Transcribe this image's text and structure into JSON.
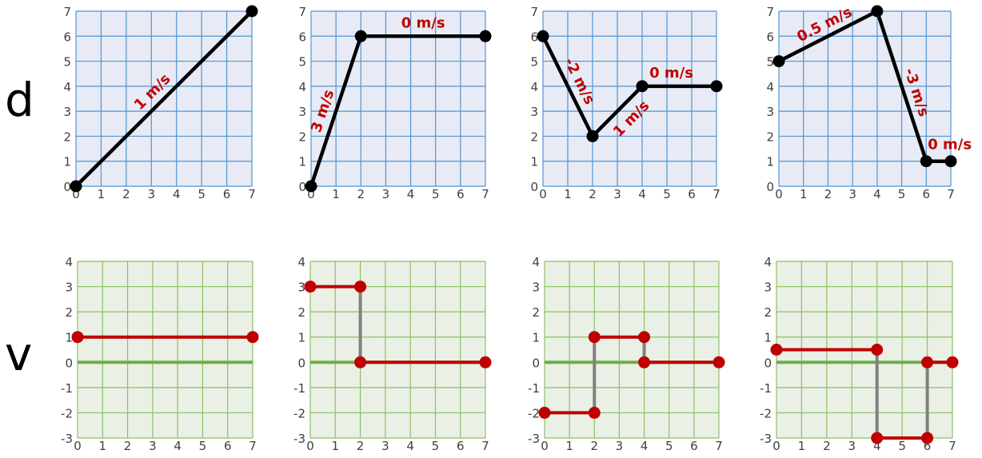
{
  "row_labels": {
    "top": "d",
    "bottom": "v"
  },
  "colors": {
    "d_plot_bg": "#e8ebf5",
    "d_grid": "#4f95d4",
    "v_plot_bg": "#eaf0e6",
    "v_grid": "#8cc063",
    "v_zero_line": "#70ad47",
    "d_line": "#000000",
    "v_line": "#c00000",
    "v_connector": "#808080",
    "speed_label": "#c00000",
    "tick_text": "#404040"
  },
  "chart_data": [
    {
      "type": "line",
      "kind": "distance",
      "xlim": [
        0,
        7
      ],
      "ylim": [
        0,
        7
      ],
      "xticks": [
        "0",
        "1",
        "2",
        "3",
        "4",
        "5",
        "6",
        "7"
      ],
      "yticks": [
        "0",
        "1",
        "2",
        "3",
        "4",
        "5",
        "6",
        "7"
      ],
      "points": [
        [
          0,
          0
        ],
        [
          7,
          7
        ]
      ],
      "segment_labels": [
        "1 m/s"
      ]
    },
    {
      "type": "line",
      "kind": "distance",
      "xlim": [
        0,
        7
      ],
      "ylim": [
        0,
        7
      ],
      "xticks": [
        "0",
        "1",
        "2",
        "3",
        "4",
        "5",
        "6",
        "7"
      ],
      "yticks": [
        "0",
        "1",
        "2",
        "3",
        "4",
        "5",
        "6",
        "7"
      ],
      "points": [
        [
          0,
          0
        ],
        [
          2,
          6
        ],
        [
          7,
          6
        ]
      ],
      "segment_labels": [
        "3 m/s",
        "0 m/s"
      ]
    },
    {
      "type": "line",
      "kind": "distance",
      "xlim": [
        0,
        7
      ],
      "ylim": [
        0,
        7
      ],
      "xticks": [
        "0",
        "1",
        "2",
        "3",
        "4",
        "5",
        "6",
        "7"
      ],
      "yticks": [
        "0",
        "1",
        "2",
        "3",
        "4",
        "5",
        "6",
        "7"
      ],
      "points": [
        [
          0,
          6
        ],
        [
          2,
          2
        ],
        [
          4,
          4
        ],
        [
          7,
          4
        ]
      ],
      "segment_labels": [
        "-2 m/s",
        "1 m/s",
        "0 m/s"
      ]
    },
    {
      "type": "line",
      "kind": "distance",
      "xlim": [
        0,
        7
      ],
      "ylim": [
        0,
        7
      ],
      "xticks": [
        "0",
        "1",
        "2",
        "3",
        "4",
        "5",
        "6",
        "7"
      ],
      "yticks": [
        "0",
        "1",
        "2",
        "3",
        "4",
        "5",
        "6",
        "7"
      ],
      "points": [
        [
          0,
          5
        ],
        [
          4,
          7
        ],
        [
          6,
          1
        ],
        [
          7,
          1
        ]
      ],
      "segment_labels": [
        "0.5 m/s",
        "-3 m/s",
        "0 m/s"
      ]
    },
    {
      "type": "line",
      "kind": "velocity",
      "xlim": [
        0,
        7
      ],
      "ylim": [
        -3,
        4
      ],
      "xticks": [
        "0",
        "1",
        "2",
        "3",
        "4",
        "5",
        "6",
        "7"
      ],
      "yticks": [
        "-3",
        "-2",
        "-1",
        "0",
        "1",
        "2",
        "3",
        "4"
      ],
      "segments": [
        [
          [
            0,
            1
          ],
          [
            7,
            1
          ]
        ]
      ],
      "connectors": []
    },
    {
      "type": "line",
      "kind": "velocity",
      "xlim": [
        0,
        7
      ],
      "ylim": [
        -3,
        4
      ],
      "xticks": [
        "0",
        "1",
        "2",
        "3",
        "4",
        "5",
        "6",
        "7"
      ],
      "yticks": [
        "-3",
        "-2",
        "-1",
        "0",
        "1",
        "2",
        "3",
        "4"
      ],
      "segments": [
        [
          [
            0,
            3
          ],
          [
            2,
            3
          ]
        ],
        [
          [
            2,
            0
          ],
          [
            7,
            0
          ]
        ]
      ],
      "connectors": [
        [
          2,
          3,
          0
        ]
      ]
    },
    {
      "type": "line",
      "kind": "velocity",
      "xlim": [
        0,
        7
      ],
      "ylim": [
        -3,
        4
      ],
      "xticks": [
        "0",
        "1",
        "2",
        "3",
        "4",
        "5",
        "6",
        "7"
      ],
      "yticks": [
        "-3",
        "-2",
        "-1",
        "0",
        "1",
        "2",
        "3",
        "4"
      ],
      "segments": [
        [
          [
            0,
            -2
          ],
          [
            2,
            -2
          ]
        ],
        [
          [
            2,
            1
          ],
          [
            4,
            1
          ]
        ],
        [
          [
            4,
            0
          ],
          [
            7,
            0
          ]
        ]
      ],
      "connectors": [
        [
          2,
          -2,
          1
        ],
        [
          4,
          1,
          0
        ]
      ]
    },
    {
      "type": "line",
      "kind": "velocity",
      "xlim": [
        0,
        7
      ],
      "ylim": [
        -3,
        4
      ],
      "xticks": [
        "0",
        "1",
        "2",
        "3",
        "4",
        "5",
        "6",
        "7"
      ],
      "yticks": [
        "-3",
        "-2",
        "-1",
        "0",
        "1",
        "2",
        "3",
        "4"
      ],
      "segments": [
        [
          [
            0,
            0.5
          ],
          [
            4,
            0.5
          ]
        ],
        [
          [
            4,
            -3
          ],
          [
            6,
            -3
          ]
        ],
        [
          [
            6,
            0
          ],
          [
            7,
            0
          ]
        ]
      ],
      "connectors": [
        [
          4,
          0.5,
          -3
        ],
        [
          6,
          -3,
          0
        ]
      ]
    }
  ]
}
